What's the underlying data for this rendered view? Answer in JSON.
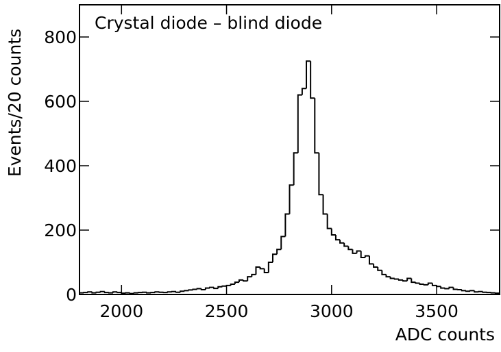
{
  "chart_data": {
    "type": "histogram",
    "annotation": "Crystal diode – blind diode",
    "x_label": "ADC counts",
    "y_label": "Events/20 counts",
    "bins": [
      1800,
      1820,
      1840,
      1860,
      1880,
      1900,
      1920,
      1940,
      1960,
      1980,
      2000,
      2020,
      2040,
      2060,
      2080,
      2100,
      2120,
      2140,
      2160,
      2180,
      2200,
      2220,
      2240,
      2260,
      2280,
      2300,
      2320,
      2340,
      2360,
      2380,
      2400,
      2420,
      2440,
      2460,
      2480,
      2500,
      2520,
      2540,
      2560,
      2580,
      2600,
      2620,
      2640,
      2660,
      2680,
      2700,
      2720,
      2740,
      2760,
      2780,
      2800,
      2820,
      2840,
      2860,
      2880,
      2900,
      2920,
      2940,
      2960,
      2980,
      3000,
      3020,
      3040,
      3060,
      3080,
      3100,
      3120,
      3140,
      3160,
      3180,
      3200,
      3220,
      3240,
      3260,
      3280,
      3300,
      3320,
      3340,
      3360,
      3380,
      3400,
      3420,
      3440,
      3460,
      3480,
      3500,
      3520,
      3540,
      3560,
      3580,
      3600,
      3620,
      3640,
      3660,
      3680,
      3700,
      3720,
      3740,
      3760,
      3780,
      3800
    ],
    "values": [
      5,
      6,
      8,
      5,
      7,
      9,
      6,
      5,
      8,
      6,
      4,
      5,
      3,
      5,
      6,
      7,
      5,
      6,
      8,
      7,
      6,
      8,
      9,
      7,
      10,
      12,
      14,
      16,
      18,
      15,
      20,
      22,
      19,
      24,
      26,
      28,
      32,
      38,
      45,
      42,
      55,
      62,
      85,
      80,
      68,
      100,
      125,
      140,
      180,
      250,
      340,
      440,
      620,
      640,
      725,
      610,
      440,
      310,
      250,
      205,
      185,
      170,
      160,
      150,
      140,
      128,
      135,
      115,
      120,
      95,
      85,
      75,
      62,
      55,
      50,
      48,
      45,
      42,
      50,
      38,
      35,
      32,
      30,
      35,
      28,
      25,
      20,
      18,
      22,
      16,
      15,
      12,
      10,
      12,
      8,
      9,
      7,
      6,
      5,
      4
    ],
    "color": "#000000",
    "xlim": [
      1800,
      3800
    ],
    "xticks": [
      2000,
      2500,
      3000,
      3500
    ],
    "ylim": [
      0,
      900
    ],
    "yticks": [
      0,
      200,
      400,
      600,
      800
    ]
  }
}
